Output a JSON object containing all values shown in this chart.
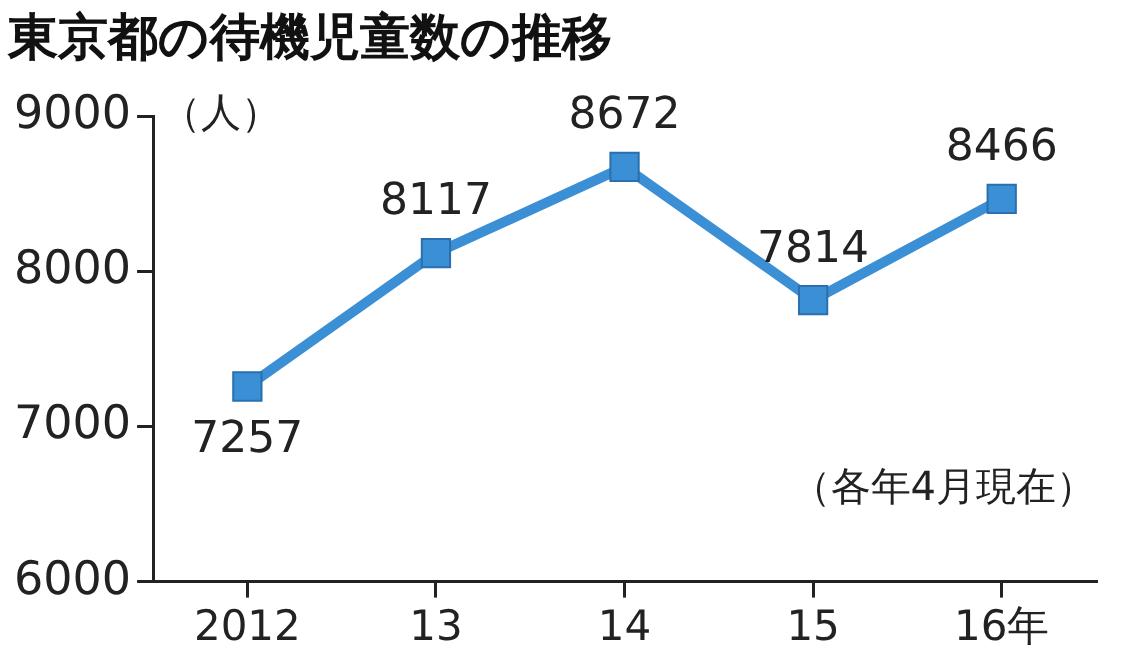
{
  "chart_data": {
    "type": "line",
    "title": "東京都の待機児童数の推移",
    "ylabel": "（人）",
    "annotations": [
      "（各年4月現在）"
    ],
    "categories": [
      "2012",
      "13",
      "14",
      "15",
      "16年"
    ],
    "series": [
      {
        "color": "#3b8fd4",
        "values": [
          7257,
          8117,
          8672,
          7814,
          8466
        ]
      }
    ],
    "ylim": [
      6000,
      9000
    ],
    "yticks": [
      6000,
      7000,
      8000,
      9000
    ],
    "grid": false,
    "marker": "square",
    "data_labels": true
  }
}
